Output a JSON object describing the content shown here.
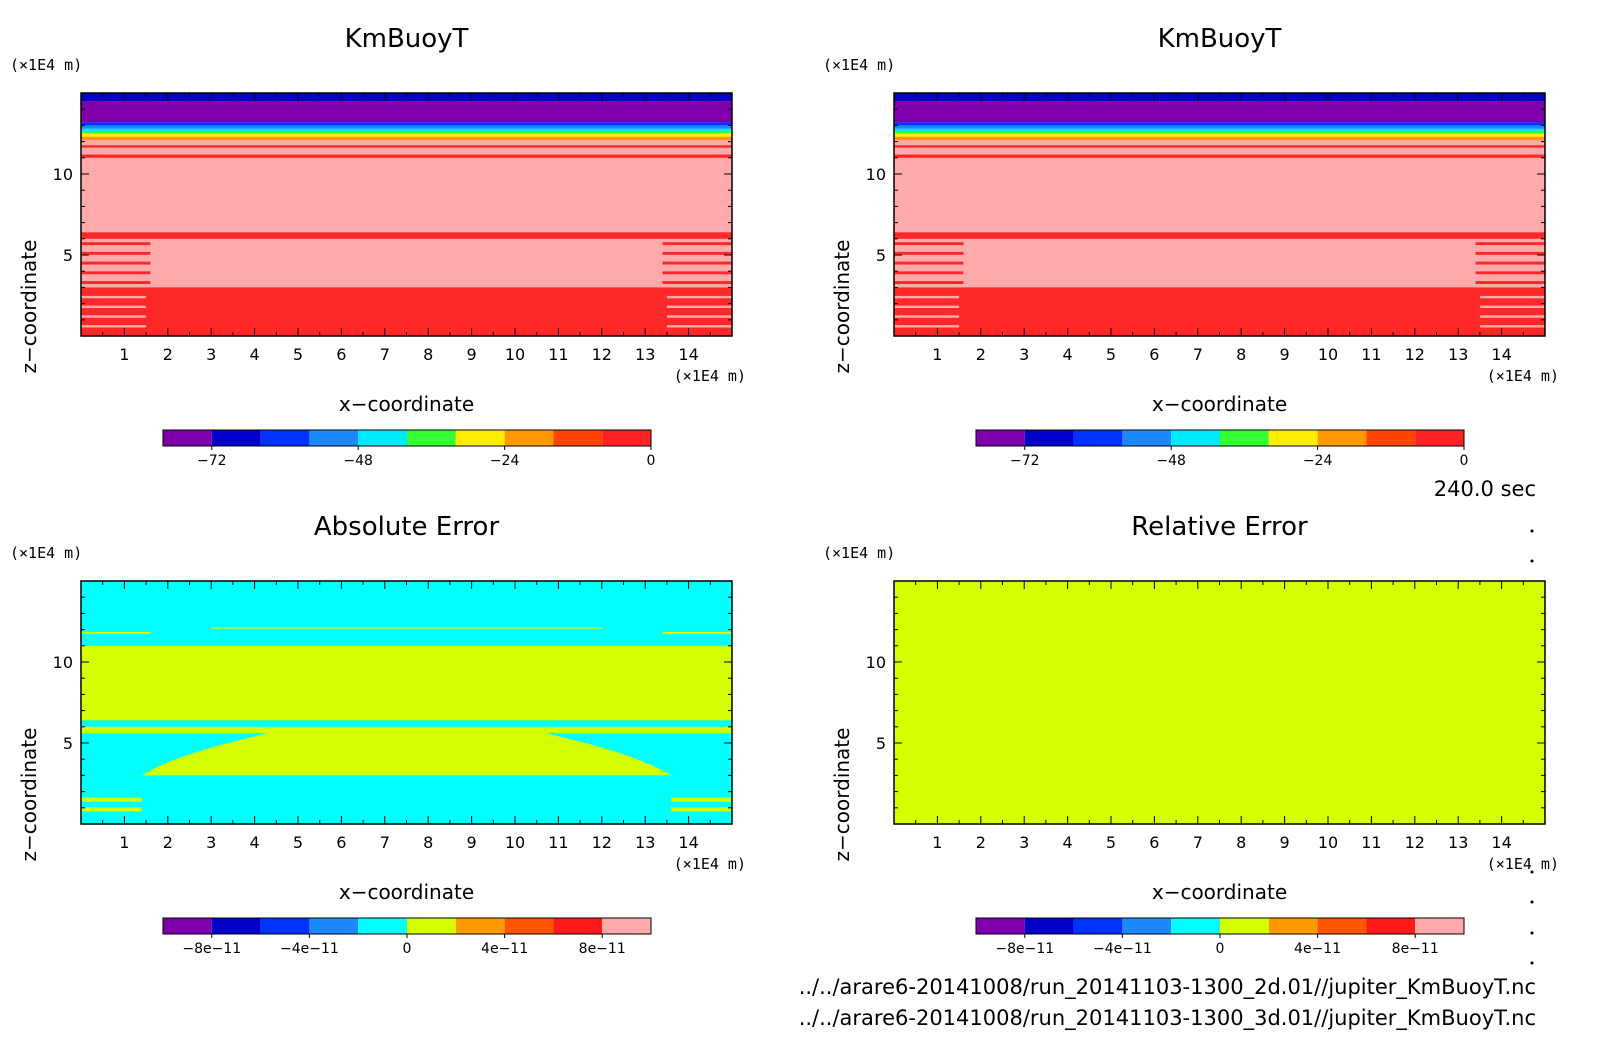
{
  "colors": {
    "palette": [
      "#7f00aa",
      "#0000c8",
      "#0033ff",
      "#1e88ff",
      "#00eaff",
      "#33ff33",
      "#ffee00",
      "#ff9900",
      "#ff4400",
      "#ff2222",
      "#ffaaaa"
    ],
    "fieldBase": "#ffaaaa",
    "fieldRed": "#ff2828",
    "abs_cyan": "#00ffff",
    "abs_yellow": "#d4ff00",
    "rel_fill": "#d4ff00"
  },
  "time_label": "240.0 sec",
  "file_paths": [
    "../../arare6-20141008/run_20141103-1300_2d.01//jupiter_KmBuoyT.nc",
    "../../arare6-20141008/run_20141103-1300_3d.01//jupiter_KmBuoyT.nc"
  ],
  "chart_data": [
    {
      "type": "heatmap",
      "title": "KmBuoyT",
      "xlabel": "x−coordinate",
      "ylabel": "z−coordinate",
      "x_unit": "(×1E4 m)",
      "y_unit": "(×1E4 m)",
      "xlim": [
        0,
        15
      ],
      "ylim": [
        0,
        15
      ],
      "x_ticks": [
        "1",
        "2",
        "3",
        "4",
        "5",
        "6",
        "7",
        "8",
        "9",
        "10",
        "11",
        "12",
        "13",
        "14"
      ],
      "y_ticks": [
        "5",
        "10"
      ],
      "colorbar": {
        "range": [
          -80,
          0
        ],
        "colors": [
          "#7f00aa",
          "#0000c8",
          "#0033ff",
          "#1e88ff",
          "#00eaff",
          "#33ff33",
          "#ffee00",
          "#ff9900",
          "#ff4400",
          "#ff2222"
        ],
        "tick_values": [
          -72,
          -48,
          -24,
          0
        ],
        "tick_labels": [
          "−72",
          "−48",
          "−24",
          "0"
        ]
      },
      "style": "field"
    },
    {
      "type": "heatmap",
      "title": "KmBuoyT",
      "xlabel": "x−coordinate",
      "ylabel": "z−coordinate",
      "x_unit": "(×1E4 m)",
      "y_unit": "(×1E4 m)",
      "xlim": [
        0,
        15
      ],
      "ylim": [
        0,
        15
      ],
      "x_ticks": [
        "1",
        "2",
        "3",
        "4",
        "5",
        "6",
        "7",
        "8",
        "9",
        "10",
        "11",
        "12",
        "13",
        "14"
      ],
      "y_ticks": [
        "5",
        "10"
      ],
      "colorbar": {
        "range": [
          -80,
          0
        ],
        "colors": [
          "#7f00aa",
          "#0000c8",
          "#0033ff",
          "#1e88ff",
          "#00eaff",
          "#33ff33",
          "#ffee00",
          "#ff9900",
          "#ff4400",
          "#ff2222"
        ],
        "tick_values": [
          -72,
          -48,
          -24,
          0
        ],
        "tick_labels": [
          "−72",
          "−48",
          "−24",
          "0"
        ]
      },
      "style": "field"
    },
    {
      "type": "heatmap",
      "title": "Absolute Error",
      "xlabel": "x−coordinate",
      "ylabel": "z−coordinate",
      "x_unit": "(×1E4 m)",
      "y_unit": "(×1E4 m)",
      "xlim": [
        0,
        15
      ],
      "ylim": [
        0,
        15
      ],
      "x_ticks": [
        "1",
        "2",
        "3",
        "4",
        "5",
        "6",
        "7",
        "8",
        "9",
        "10",
        "11",
        "12",
        "13",
        "14"
      ],
      "y_ticks": [
        "5",
        "10"
      ],
      "colorbar": {
        "range": [
          -1e-10,
          1e-10
        ],
        "colors": [
          "#7f00aa",
          "#0000c8",
          "#0033ff",
          "#1e88ff",
          "#00ffff",
          "#d4ff00",
          "#ff9900",
          "#ff5500",
          "#ff1a1a",
          "#ffaaaa"
        ],
        "tick_values": [
          -8e-11,
          -4e-11,
          0,
          4e-11,
          8e-11
        ],
        "tick_labels": [
          "−8e−11",
          "−4e−11",
          "0",
          "4e−11",
          "8e−11"
        ]
      },
      "style": "abs"
    },
    {
      "type": "heatmap",
      "title": "Relative Error",
      "xlabel": "x−coordinate",
      "ylabel": "z−coordinate",
      "x_unit": "(×1E4 m)",
      "y_unit": "(×1E4 m)",
      "xlim": [
        0,
        15
      ],
      "ylim": [
        0,
        15
      ],
      "x_ticks": [
        "1",
        "2",
        "3",
        "4",
        "5",
        "6",
        "7",
        "8",
        "9",
        "10",
        "11",
        "12",
        "13",
        "14"
      ],
      "y_ticks": [
        "5",
        "10"
      ],
      "colorbar": {
        "range": [
          -1e-10,
          1e-10
        ],
        "colors": [
          "#7f00aa",
          "#0000c8",
          "#0033ff",
          "#1e88ff",
          "#00ffff",
          "#d4ff00",
          "#ff9900",
          "#ff5500",
          "#ff1a1a",
          "#ffaaaa"
        ],
        "tick_values": [
          -8e-11,
          -4e-11,
          0,
          4e-11,
          8e-11
        ],
        "tick_labels": [
          "−8e−11",
          "−4e−11",
          "0",
          "4e−11",
          "8e−11"
        ]
      },
      "style": "rel"
    }
  ]
}
